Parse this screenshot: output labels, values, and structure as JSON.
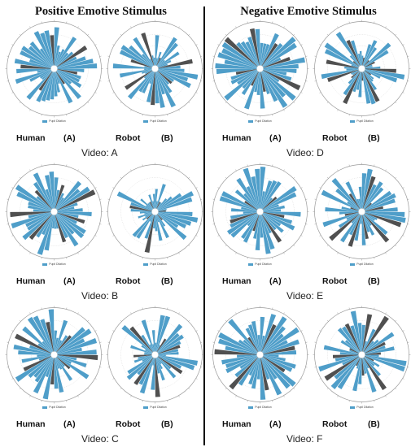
{
  "headings": {
    "left": "Positive Emotive Stimulus",
    "right": "Negative Emotive Stimulus"
  },
  "colors": {
    "bar": "#4f9ec9",
    "highlight": "#505050",
    "grid": "#cfcfcf",
    "ring": "#9a9a9a"
  },
  "chart_data": [
    {
      "type": "bar",
      "polar": true,
      "column": "left",
      "row": 0,
      "panel": "Human",
      "tag": "(A)",
      "video": "Video: A",
      "series": [
        {
          "name": "Pupil Dilation",
          "seed": 11,
          "base": 0.62,
          "spread": 0.35,
          "dark": [
            7,
            13,
            19,
            28,
            36,
            47
          ]
        }
      ]
    },
    {
      "type": "bar",
      "polar": true,
      "column": "left",
      "row": 0,
      "panel": "Robot",
      "tag": "(B)",
      "video": "Video: A",
      "series": [
        {
          "name": "Pupil Dilation",
          "seed": 12,
          "base": 0.5,
          "spread": 0.45,
          "dark": [
            3,
            10,
            17,
            24,
            31,
            38,
            45
          ]
        }
      ]
    },
    {
      "type": "bar",
      "polar": true,
      "column": "right",
      "row": 0,
      "panel": "Human",
      "tag": "(A)",
      "video": "Video: D",
      "series": [
        {
          "name": "Pupil Dilation",
          "seed": 21,
          "base": 0.7,
          "spread": 0.35,
          "dark": [
            4,
            9,
            15,
            22,
            27,
            34,
            41,
            46
          ]
        }
      ]
    },
    {
      "type": "bar",
      "polar": true,
      "column": "right",
      "row": 0,
      "panel": "Robot",
      "tag": "(B)",
      "video": "Video: D",
      "series": [
        {
          "name": "Pupil Dilation",
          "seed": 22,
          "base": 0.55,
          "spread": 0.4,
          "dark": [
            1,
            5,
            8,
            12,
            16,
            20,
            23,
            27,
            30,
            33,
            37,
            41,
            44
          ]
        }
      ]
    },
    {
      "type": "bar",
      "polar": true,
      "column": "left",
      "row": 1,
      "panel": "Human",
      "tag": "(A)",
      "video": "Video: B",
      "series": [
        {
          "name": "Pupil Dilation",
          "seed": 31,
          "base": 0.65,
          "spread": 0.35,
          "dark": [
            2,
            8,
            14,
            21,
            29,
            35,
            42
          ]
        }
      ]
    },
    {
      "type": "bar",
      "polar": true,
      "column": "left",
      "row": 1,
      "panel": "Robot",
      "tag": "(B)",
      "video": "Video: B",
      "series": [
        {
          "name": "Pupil Dilation",
          "seed": 32,
          "base": 0.5,
          "spread": 0.45,
          "dark": [
            3,
            11,
            18,
            25,
            30,
            37,
            44
          ]
        }
      ]
    },
    {
      "type": "bar",
      "polar": true,
      "column": "right",
      "row": 1,
      "panel": "Human",
      "tag": "(A)",
      "video": "Video: E",
      "series": [
        {
          "name": "Pupil Dilation",
          "seed": 41,
          "base": 0.65,
          "spread": 0.35,
          "dark": [
            6,
            13,
            19,
            26,
            33,
            40
          ]
        }
      ]
    },
    {
      "type": "bar",
      "polar": true,
      "column": "right",
      "row": 1,
      "panel": "Robot",
      "tag": "(B)",
      "video": "Video: E",
      "series": [
        {
          "name": "Pupil Dilation",
          "seed": 42,
          "base": 0.58,
          "spread": 0.4,
          "dark": [
            2,
            6,
            10,
            14,
            18,
            22,
            26,
            30,
            34,
            38,
            43
          ]
        }
      ]
    },
    {
      "type": "bar",
      "polar": true,
      "column": "left",
      "row": 2,
      "panel": "Human",
      "tag": "(A)",
      "video": "Video: C",
      "series": [
        {
          "name": "Pupil Dilation",
          "seed": 51,
          "base": 0.62,
          "spread": 0.38,
          "dark": [
            5,
            12,
            17,
            24,
            32,
            39,
            46
          ]
        }
      ]
    },
    {
      "type": "bar",
      "polar": true,
      "column": "left",
      "row": 2,
      "panel": "Robot",
      "tag": "(B)",
      "video": "Video: C",
      "series": [
        {
          "name": "Pupil Dilation",
          "seed": 52,
          "base": 0.5,
          "spread": 0.45,
          "dark": [
            4,
            9,
            16,
            23,
            28,
            35,
            42
          ]
        }
      ]
    },
    {
      "type": "bar",
      "polar": true,
      "column": "right",
      "row": 2,
      "panel": "Human",
      "tag": "(A)",
      "video": "Video: F",
      "series": [
        {
          "name": "Pupil Dilation",
          "seed": 61,
          "base": 0.68,
          "spread": 0.35,
          "dark": [
            3,
            10,
            16,
            22,
            29,
            36,
            43
          ]
        }
      ]
    },
    {
      "type": "bar",
      "polar": true,
      "column": "right",
      "row": 2,
      "panel": "Robot",
      "tag": "(B)",
      "video": "Video: F",
      "series": [
        {
          "name": "Pupil Dilation",
          "seed": 62,
          "base": 0.6,
          "spread": 0.4,
          "dark": [
            1,
            4,
            8,
            11,
            15,
            19,
            23,
            27,
            31,
            35,
            39,
            44
          ]
        }
      ]
    }
  ]
}
